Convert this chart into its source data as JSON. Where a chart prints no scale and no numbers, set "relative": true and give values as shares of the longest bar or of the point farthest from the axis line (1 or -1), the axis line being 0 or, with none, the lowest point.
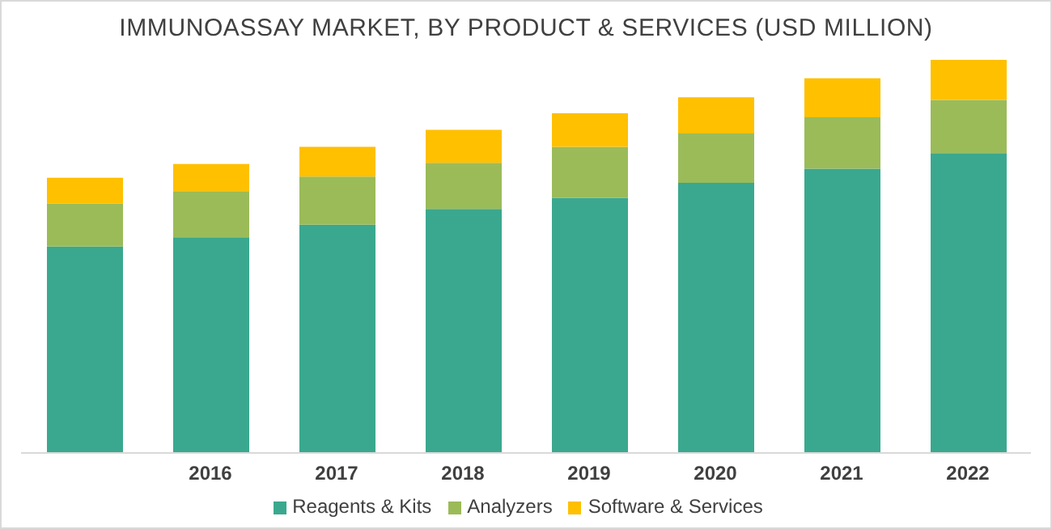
{
  "chart_data": {
    "type": "bar",
    "title": "IMMUNOASSAY MARKET, BY PRODUCT & SERVICES (USD MILLION)",
    "categories": [
      null,
      "2016",
      "2017",
      "2018",
      "2019",
      "2020",
      "2021",
      "2022"
    ],
    "stacked": true,
    "relative": true,
    "legend": "bottom",
    "grid": false,
    "series": [
      {
        "name": "Reagents & Kits",
        "color": "#3aa88f",
        "values": [
          0.525,
          0.549,
          0.581,
          0.621,
          0.649,
          0.687,
          0.723,
          0.763
        ]
      },
      {
        "name": "Analyzers",
        "color": "#9bbb59",
        "values": [
          0.11,
          0.117,
          0.122,
          0.117,
          0.13,
          0.126,
          0.131,
          0.135
        ]
      },
      {
        "name": "Software & Services",
        "color": "#ffc000",
        "values": [
          0.065,
          0.069,
          0.076,
          0.084,
          0.085,
          0.092,
          0.099,
          0.102
        ]
      }
    ]
  }
}
